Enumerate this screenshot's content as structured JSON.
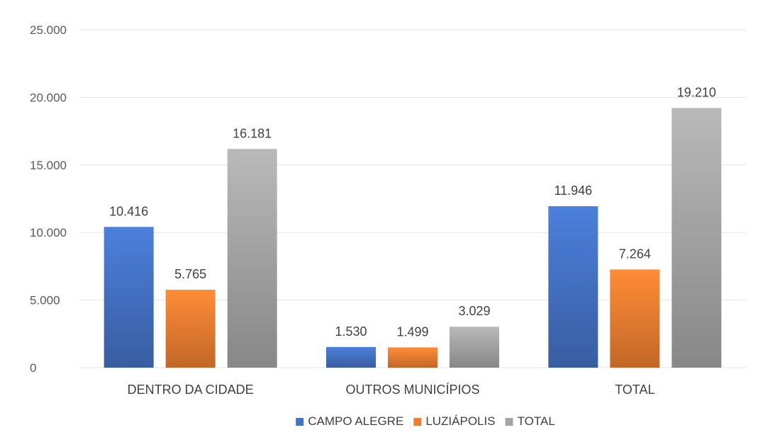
{
  "chart_data": {
    "type": "bar",
    "categories": [
      "DENTRO DA CIDADE",
      "OUTROS MUNICÍPIOS",
      "TOTAL"
    ],
    "series": [
      {
        "name": "CAMPO ALEGRE",
        "values": [
          10416,
          1530,
          11946
        ],
        "labels": [
          "10.416",
          "1.530",
          "11.946"
        ],
        "color": "#4472C4"
      },
      {
        "name": "LUZIÁPOLIS",
        "values": [
          5765,
          1499,
          7264
        ],
        "labels": [
          "5.765",
          "1.499",
          "7.264"
        ],
        "color": "#ED7D31"
      },
      {
        "name": "TOTAL",
        "values": [
          16181,
          3029,
          19210
        ],
        "labels": [
          "16.181",
          "3.029",
          "19.210"
        ],
        "color": "#A5A5A5"
      }
    ],
    "yticks": [
      0,
      5000,
      10000,
      15000,
      20000,
      25000
    ],
    "ytick_labels": [
      "0",
      "5.000",
      "10.000",
      "15.000",
      "20.000",
      "25.000"
    ],
    "ylim": [
      0,
      25000
    ],
    "grid": true,
    "legend_position": "bottom",
    "title": "",
    "xlabel": "",
    "ylabel": ""
  }
}
